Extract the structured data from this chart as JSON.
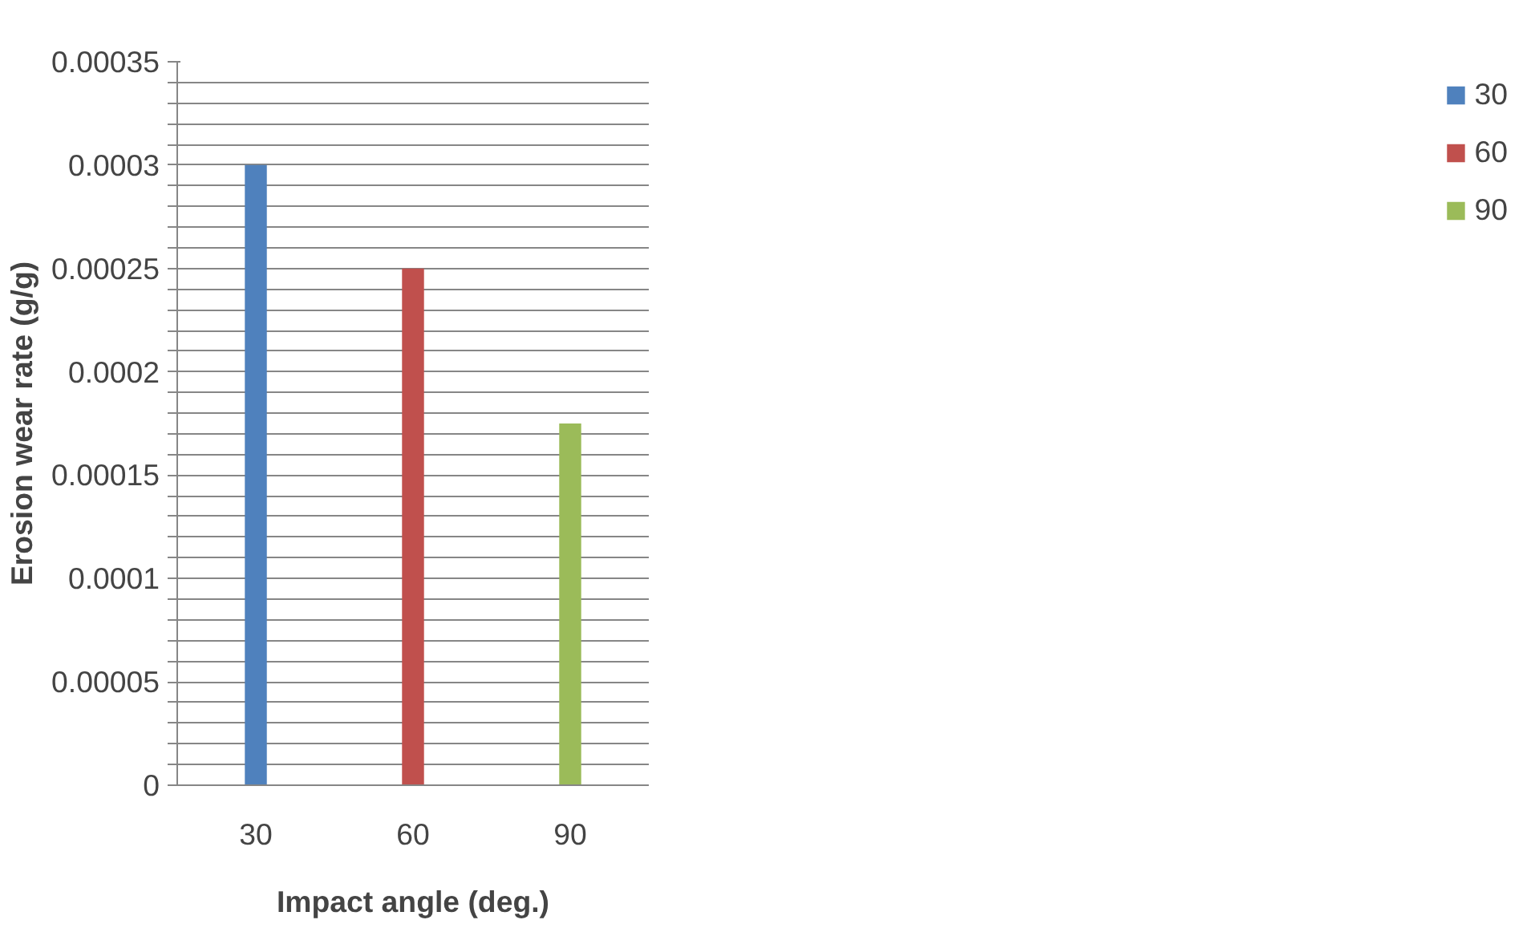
{
  "chart_data": {
    "type": "bar",
    "xlabel": "Impact angle (deg.)",
    "ylabel": "Erosion wear rate (g/g)",
    "categories": [
      "30",
      "60",
      "90"
    ],
    "series": [
      {
        "name": "30",
        "color": "#4f81bd",
        "values": [
          0.0003,
          null,
          null
        ]
      },
      {
        "name": "60",
        "color": "#c0504d",
        "values": [
          null,
          0.00025,
          null
        ]
      },
      {
        "name": "90",
        "color": "#9bbb59",
        "values": [
          null,
          null,
          0.000175
        ]
      }
    ],
    "ylim": [
      0,
      0.00035
    ],
    "yticks": [
      {
        "value": 0,
        "label": "0"
      },
      {
        "value": 1e-05,
        "label": null
      },
      {
        "value": 2e-05,
        "label": null
      },
      {
        "value": 3e-05,
        "label": null
      },
      {
        "value": 4e-05,
        "label": null
      },
      {
        "value": 5e-05,
        "label": "0.00005"
      },
      {
        "value": 6e-05,
        "label": null
      },
      {
        "value": 7e-05,
        "label": null
      },
      {
        "value": 8e-05,
        "label": null
      },
      {
        "value": 9e-05,
        "label": null
      },
      {
        "value": 0.0001,
        "label": "0.0001"
      },
      {
        "value": 0.00011,
        "label": null
      },
      {
        "value": 0.00012,
        "label": null
      },
      {
        "value": 0.00013,
        "label": null
      },
      {
        "value": 0.00014,
        "label": null
      },
      {
        "value": 0.00015,
        "label": "0.00015"
      },
      {
        "value": 0.00016,
        "label": null
      },
      {
        "value": 0.00017,
        "label": null
      },
      {
        "value": 0.00018,
        "label": null
      },
      {
        "value": 0.00019,
        "label": null
      },
      {
        "value": 0.0002,
        "label": "0.0002"
      },
      {
        "value": 0.00021,
        "label": null
      },
      {
        "value": 0.00022,
        "label": null
      },
      {
        "value": 0.00023,
        "label": null
      },
      {
        "value": 0.00024,
        "label": null
      },
      {
        "value": 0.00025,
        "label": "0.00025"
      },
      {
        "value": 0.00026,
        "label": null
      },
      {
        "value": 0.00027,
        "label": null
      },
      {
        "value": 0.00028,
        "label": null
      },
      {
        "value": 0.00029,
        "label": null
      },
      {
        "value": 0.0003,
        "label": "0.0003"
      },
      {
        "value": 0.00031,
        "label": null
      },
      {
        "value": 0.00032,
        "label": null
      },
      {
        "value": 0.00033,
        "label": null
      },
      {
        "value": 0.00034,
        "label": null
      },
      {
        "value": 0.00035,
        "label": "0.00035"
      }
    ],
    "grid": "y",
    "legend": "right"
  }
}
